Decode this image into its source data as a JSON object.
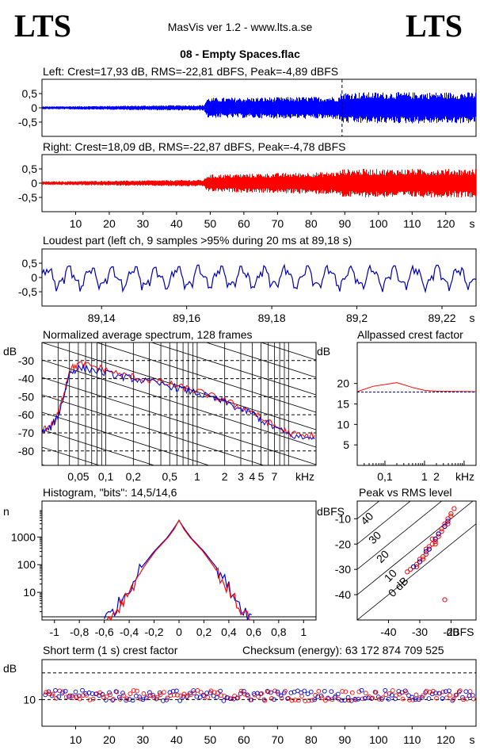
{
  "header": {
    "logo_left": "LTS",
    "logo_right": "LTS",
    "app_title": "MasVis ver 1.2 - www.lts.a.se",
    "file_title": "08 - Empty Spaces.flac"
  },
  "chart_data": [
    {
      "id": "left",
      "type": "line",
      "title": "Left: Crest=17,93 dB, RMS=-22,81 dBFS, Peak=-4,89 dBFS",
      "color": "#0000ff",
      "x_unit": "s",
      "xlim": [
        0,
        129
      ],
      "ylim": [
        -1,
        1
      ],
      "yticks": [
        "0,5",
        "0",
        "-0,5"
      ],
      "envelope": [
        {
          "x": 0,
          "amp": 0.05
        },
        {
          "x": 48,
          "amp": 0.1
        },
        {
          "x": 49,
          "amp": 0.35
        },
        {
          "x": 88,
          "amp": 0.4
        },
        {
          "x": 89,
          "amp": 0.55
        },
        {
          "x": 129,
          "amp": 0.55
        }
      ],
      "marker_x": 89.18
    },
    {
      "id": "right",
      "type": "line",
      "title": "Right: Crest=18,09 dB, RMS=-22,87 dBFS, Peak=-4,78 dBFS",
      "color": "#ff0000",
      "x_unit": "s",
      "xlim": [
        0,
        129
      ],
      "ylim": [
        -1,
        1
      ],
      "yticks": [
        "0,5",
        "0",
        "-0,5"
      ],
      "xticks": [
        "10",
        "20",
        "30",
        "40",
        "50",
        "60",
        "70",
        "80",
        "90",
        "100",
        "110",
        "120",
        "s"
      ],
      "envelope": [
        {
          "x": 0,
          "amp": 0.06
        },
        {
          "x": 48,
          "amp": 0.12
        },
        {
          "x": 49,
          "amp": 0.3
        },
        {
          "x": 88,
          "amp": 0.4
        },
        {
          "x": 89,
          "amp": 0.5
        },
        {
          "x": 129,
          "amp": 0.5
        }
      ]
    },
    {
      "id": "loudest",
      "type": "line",
      "title": "Loudest part (left  ch, 9 samples >95% during 20 ms at 89,18 s)",
      "color": "#0000aa",
      "xlim": [
        89.126,
        89.228
      ],
      "ylim": [
        -1,
        1
      ],
      "yticks": [
        "0,5",
        "0",
        "-0,5"
      ],
      "xticks": [
        "89,14",
        "89,16",
        "89,18",
        "89,2",
        "89,22",
        "s"
      ],
      "amplitude": 0.3
    },
    {
      "id": "spectrum",
      "type": "line",
      "title": "Normalized average spectrum, 128 frames",
      "ylabel": "dB",
      "xlabel": "kHz",
      "xscale": "log",
      "xlim": [
        0.02,
        20
      ],
      "ylim": [
        -88,
        -20
      ],
      "yticks": [
        "-30",
        "-40",
        "-50",
        "-60",
        "-70",
        "-80"
      ],
      "xticks": [
        "0,05",
        "0,1",
        "0,2",
        "0,5",
        "1",
        "2",
        "3",
        "4",
        "5",
        "7",
        "kHz"
      ],
      "series": [
        {
          "color": "#ff0000",
          "points": [
            [
              0.02,
              -68
            ],
            [
              0.025,
              -66
            ],
            [
              0.03,
              -60
            ],
            [
              0.035,
              -47
            ],
            [
              0.04,
              -35
            ],
            [
              0.05,
              -32
            ],
            [
              0.07,
              -33
            ],
            [
              0.1,
              -35
            ],
            [
              0.15,
              -38
            ],
            [
              0.2,
              -39
            ],
            [
              0.3,
              -41
            ],
            [
              0.5,
              -43
            ],
            [
              0.7,
              -45
            ],
            [
              1,
              -47
            ],
            [
              1.5,
              -50
            ],
            [
              2,
              -52
            ],
            [
              3,
              -56
            ],
            [
              4,
              -58
            ],
            [
              5,
              -62
            ],
            [
              7,
              -66
            ],
            [
              10,
              -70
            ],
            [
              15,
              -72
            ],
            [
              20,
              -71
            ]
          ]
        },
        {
          "color": "#0000cc",
          "points": [
            [
              0.02,
              -70
            ],
            [
              0.025,
              -67
            ],
            [
              0.03,
              -61
            ],
            [
              0.035,
              -49
            ],
            [
              0.04,
              -37
            ],
            [
              0.05,
              -34
            ],
            [
              0.07,
              -35
            ],
            [
              0.1,
              -37
            ],
            [
              0.15,
              -39
            ],
            [
              0.2,
              -40
            ],
            [
              0.3,
              -42
            ],
            [
              0.5,
              -44
            ],
            [
              0.7,
              -46
            ],
            [
              1,
              -48
            ],
            [
              1.5,
              -51
            ],
            [
              2,
              -53
            ],
            [
              3,
              -57
            ],
            [
              4,
              -59
            ],
            [
              5,
              -63
            ],
            [
              7,
              -67
            ],
            [
              10,
              -71
            ],
            [
              15,
              -73
            ],
            [
              20,
              -72
            ]
          ]
        }
      ]
    },
    {
      "id": "allpass",
      "type": "line",
      "title": "Allpassed crest factor",
      "ylabel": "dB",
      "xlabel": "kHz",
      "xscale": "log",
      "xlim": [
        0.02,
        20
      ],
      "ylim": [
        0,
        30
      ],
      "yticks": [
        "20",
        "15",
        "10",
        "5"
      ],
      "xticks": [
        "0,1",
        "1",
        "2",
        "kHz"
      ],
      "series": [
        {
          "color": "#ff0000",
          "points": [
            [
              0.02,
              18
            ],
            [
              0.05,
              19.3
            ],
            [
              0.2,
              20.2
            ],
            [
              0.5,
              19
            ],
            [
              1,
              18.3
            ],
            [
              2,
              18.1
            ],
            [
              20,
              18
            ]
          ]
        },
        {
          "color": "#0000cc",
          "points": [
            [
              0.02,
              17.9
            ],
            [
              0.2,
              17.9
            ],
            [
              1,
              17.9
            ],
            [
              20,
              17.9
            ]
          ]
        }
      ]
    },
    {
      "id": "histogram",
      "type": "line",
      "title": "Histogram, \"bits\": 14,5/14,6",
      "ylabel": "n",
      "yscale": "log",
      "xlim": [
        -1.1,
        1.1
      ],
      "ylim": [
        1,
        20000
      ],
      "yticks": [
        "1000",
        "100",
        "10"
      ],
      "xticks": [
        "-1",
        "-0,8",
        "-0,6",
        "-0,4",
        "-0,2",
        "0",
        "0,2",
        "0,4",
        "0,6",
        "0,8",
        "1"
      ],
      "series": [
        {
          "color": "#0000cc",
          "points": [
            [
              -0.6,
              1
            ],
            [
              -0.5,
              3
            ],
            [
              -0.4,
              15
            ],
            [
              -0.3,
              80
            ],
            [
              -0.2,
              300
            ],
            [
              -0.1,
              900
            ],
            [
              -0.05,
              1800
            ],
            [
              0,
              4000
            ],
            [
              0.05,
              1800
            ],
            [
              0.1,
              900
            ],
            [
              0.2,
              300
            ],
            [
              0.3,
              80
            ],
            [
              0.4,
              15
            ],
            [
              0.5,
              3
            ],
            [
              0.6,
              1
            ]
          ]
        },
        {
          "color": "#ff0000",
          "points": [
            [
              -0.58,
              1
            ],
            [
              -0.48,
              3
            ],
            [
              -0.38,
              16
            ],
            [
              -0.28,
              85
            ],
            [
              -0.19,
              310
            ],
            [
              -0.09,
              950
            ],
            [
              -0.04,
              1900
            ],
            [
              0,
              4100
            ],
            [
              0.04,
              1900
            ],
            [
              0.09,
              950
            ],
            [
              0.19,
              310
            ],
            [
              0.28,
              85
            ],
            [
              0.38,
              16
            ],
            [
              0.48,
              3
            ],
            [
              0.58,
              1
            ]
          ]
        }
      ]
    },
    {
      "id": "peakrms",
      "type": "scatter",
      "title": "Peak vs RMS level",
      "ylabel": "dBFS",
      "xlabel": "dBFS",
      "xlim": [
        -50,
        -12
      ],
      "ylim": [
        -50,
        -3
      ],
      "yticks": [
        "-10",
        "-20",
        "-30",
        "-40"
      ],
      "xticks": [
        "-40",
        "-30",
        "-20",
        "dBFS"
      ],
      "diagonal_labels": [
        "40",
        "30",
        "20",
        "10",
        "0 dB"
      ],
      "series": [
        {
          "color": "#ff0000",
          "points": [
            [
              -33,
              -30
            ],
            [
              -32,
              -29
            ],
            [
              -31,
              -28
            ],
            [
              -30,
              -26
            ],
            [
              -29,
              -25
            ],
            [
              -28,
              -24
            ],
            [
              -27,
              -22
            ],
            [
              -26,
              -20
            ],
            [
              -25,
              -19
            ],
            [
              -24,
              -17
            ],
            [
              -23,
              -15
            ],
            [
              -22,
              -13
            ],
            [
              -21,
              -10
            ],
            [
              -20,
              -8
            ],
            [
              -30,
              -27
            ],
            [
              -27,
              -21
            ],
            [
              -25,
              -18
            ],
            [
              -22,
              -12
            ],
            [
              -34,
              -31
            ],
            [
              -28,
              -22
            ],
            [
              -23,
              -14
            ],
            [
              -26,
              -18
            ],
            [
              -24,
              -16
            ],
            [
              -21,
              -12
            ],
            [
              -19,
              -6
            ],
            [
              -20,
              -9
            ],
            [
              -22,
              -42
            ],
            [
              -31,
              -29
            ],
            [
              -29,
              -26
            ],
            [
              -25,
              -20
            ]
          ]
        },
        {
          "color": "#0000cc",
          "points": [
            [
              -32,
              -29
            ],
            [
              -28,
              -23
            ],
            [
              -25,
              -18
            ],
            [
              -22,
              -13
            ],
            [
              -27,
              -22
            ],
            [
              -30,
              -27
            ],
            [
              -24,
              -16
            ],
            [
              -21,
              -11
            ]
          ]
        }
      ]
    },
    {
      "id": "shortcrest",
      "type": "scatter",
      "title": "Short term (1 s) crest factor",
      "checksum_text": "Checksum (energy):   63 172 874 709 525",
      "ylabel": "dB",
      "xlim": [
        0,
        129
      ],
      "ylim": [
        0,
        25
      ],
      "yticks": [
        "10"
      ],
      "xticks": [
        "10",
        "20",
        "30",
        "40",
        "50",
        "60",
        "70",
        "80",
        "90",
        "100",
        "110",
        "120",
        "s"
      ],
      "center": 11.5,
      "spread": 2
    }
  ]
}
